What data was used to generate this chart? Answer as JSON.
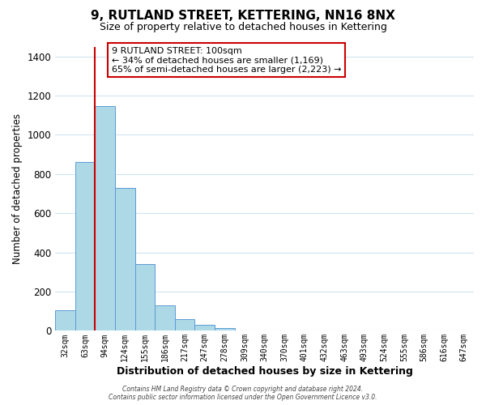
{
  "title": "9, RUTLAND STREET, KETTERING, NN16 8NX",
  "subtitle": "Size of property relative to detached houses in Kettering",
  "xlabel": "Distribution of detached houses by size in Kettering",
  "ylabel": "Number of detached properties",
  "bar_labels": [
    "32sqm",
    "63sqm",
    "94sqm",
    "124sqm",
    "155sqm",
    "186sqm",
    "217sqm",
    "247sqm",
    "278sqm",
    "309sqm",
    "340sqm",
    "370sqm",
    "401sqm",
    "432sqm",
    "463sqm",
    "493sqm",
    "524sqm",
    "555sqm",
    "586sqm",
    "616sqm",
    "647sqm"
  ],
  "bar_values": [
    105,
    860,
    1145,
    730,
    340,
    130,
    60,
    30,
    15,
    0,
    0,
    0,
    0,
    0,
    0,
    0,
    0,
    0,
    0,
    0,
    0
  ],
  "bar_color": "#add8e6",
  "bar_edge_color": "#5b9bd5",
  "ylim": [
    0,
    1450
  ],
  "yticks": [
    0,
    200,
    400,
    600,
    800,
    1000,
    1200,
    1400
  ],
  "property_line_index": 2,
  "property_line_color": "#cc0000",
  "annotation_title": "9 RUTLAND STREET: 100sqm",
  "annotation_line1": "← 34% of detached houses are smaller (1,169)",
  "annotation_line2": "65% of semi-detached houses are larger (2,223) →",
  "annotation_box_color": "#ffffff",
  "annotation_box_edge": "#cc0000",
  "footer1": "Contains HM Land Registry data © Crown copyright and database right 2024.",
  "footer2": "Contains public sector information licensed under the Open Government Licence v3.0.",
  "bg_color": "#ffffff",
  "grid_color": "#d0e4f0"
}
